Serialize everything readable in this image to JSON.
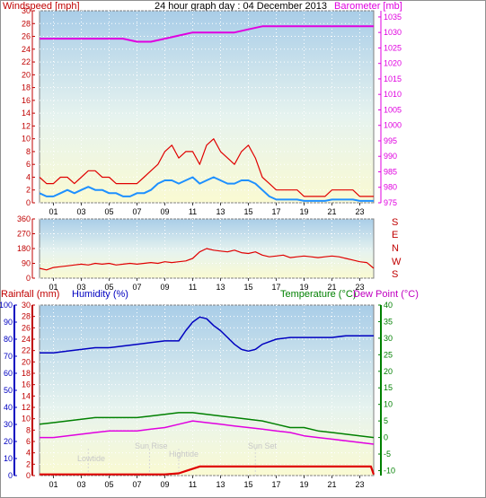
{
  "header": {
    "title": "24 hour graph day : 04 December 2013",
    "left_label": "Windspeed [mph]",
    "right_label": "Barometer [mb]"
  },
  "middle": {
    "compass_labels": [
      "S",
      "E",
      "N",
      "W",
      "S"
    ]
  },
  "bottom": {
    "rainfall_label": "Rainfall (mm)",
    "humidity_label": "Humidity (%)",
    "temperature_label": "Temperature (°C)",
    "dewpoint_label": "Dew Point (°C)",
    "annotations": {
      "lowtide": "Lowtide",
      "sunrise": "Sun Rise",
      "hightide": "Hightide",
      "sunset": "Sun Set"
    }
  },
  "colors": {
    "windspeed": "#e00000",
    "gust": "#e00000",
    "avg_wind": "#1e90ff",
    "barometer": "#e000e0",
    "direction": "#e00000",
    "humidity": "#0000c0",
    "temperature": "#008000",
    "dewpoint": "#e000e0",
    "rainfall": "#e00000"
  },
  "chart_data": [
    {
      "type": "line",
      "name": "wind-and-barometer",
      "x_ticks": [
        "01",
        "03",
        "05",
        "07",
        "09",
        "11",
        "13",
        "15",
        "17",
        "19",
        "21",
        "23"
      ],
      "xlim": [
        0,
        24
      ],
      "y_left": {
        "ticks": [
          0,
          2,
          4,
          6,
          8,
          10,
          12,
          14,
          16,
          18,
          20,
          22,
          24,
          26,
          28,
          30
        ],
        "ylim": [
          0,
          30
        ]
      },
      "y_right": {
        "ticks": [
          975,
          980,
          985,
          990,
          995,
          1000,
          1005,
          1010,
          1015,
          1020,
          1025,
          1030,
          1035
        ],
        "ylim": [
          975,
          1037
        ]
      },
      "series": [
        {
          "key": "gust",
          "x": [
            0,
            0.5,
            1,
            1.5,
            2,
            2.5,
            3,
            3.5,
            4,
            4.5,
            5,
            5.5,
            6,
            6.5,
            7,
            7.5,
            8,
            8.5,
            9,
            9.5,
            10,
            10.5,
            11,
            11.5,
            12,
            12.5,
            13,
            13.5,
            14,
            14.5,
            15,
            15.5,
            16,
            16.5,
            17,
            17.5,
            18,
            18.5,
            19,
            19.5,
            20,
            20.5,
            21,
            21.5,
            22,
            22.5,
            23,
            23.5,
            24
          ],
          "y": [
            4,
            3,
            3,
            4,
            4,
            3,
            4,
            5,
            5,
            4,
            4,
            3,
            3,
            3,
            3,
            4,
            5,
            6,
            8,
            9,
            7,
            8,
            8,
            6,
            9,
            10,
            8,
            7,
            6,
            8,
            9,
            7,
            4,
            3,
            2,
            2,
            2,
            2,
            1,
            1,
            1,
            1,
            2,
            2,
            2,
            2,
            1,
            1,
            1
          ]
        },
        {
          "key": "avg_wind",
          "x": [
            0,
            0.5,
            1,
            1.5,
            2,
            2.5,
            3,
            3.5,
            4,
            4.5,
            5,
            5.5,
            6,
            6.5,
            7,
            7.5,
            8,
            8.5,
            9,
            9.5,
            10,
            10.5,
            11,
            11.5,
            12,
            12.5,
            13,
            13.5,
            14,
            14.5,
            15,
            15.5,
            16,
            16.5,
            17,
            17.5,
            18,
            18.5,
            19,
            19.5,
            20,
            20.5,
            21,
            21.5,
            22,
            22.5,
            23,
            23.5,
            24
          ],
          "y": [
            1.5,
            1,
            1,
            1.5,
            2,
            1.5,
            2,
            2.5,
            2,
            2,
            1.5,
            1.5,
            1,
            1,
            1.5,
            1.5,
            2,
            3,
            3.5,
            3.5,
            3,
            3.5,
            4,
            3,
            3.5,
            4,
            3.5,
            3,
            3,
            3.5,
            3.5,
            3,
            2,
            1,
            0.5,
            0.5,
            0.5,
            0.5,
            0.3,
            0.3,
            0.3,
            0.3,
            0.5,
            0.5,
            0.5,
            0.5,
            0.3,
            0.3,
            0.3
          ]
        },
        {
          "key": "barometer",
          "x": [
            0,
            1,
            2,
            3,
            4,
            5,
            6,
            7,
            8,
            9,
            10,
            11,
            12,
            13,
            14,
            15,
            16,
            17,
            18,
            19,
            20,
            21,
            22,
            23,
            24
          ],
          "y": [
            1028,
            1028,
            1028,
            1028,
            1028,
            1028,
            1028,
            1027,
            1027,
            1028,
            1029,
            1030,
            1030,
            1030,
            1030,
            1031,
            1032,
            1032,
            1032,
            1032,
            1032,
            1032,
            1032,
            1032,
            1032
          ]
        }
      ]
    },
    {
      "type": "line",
      "name": "wind-direction",
      "x_ticks": [
        "01",
        "03",
        "05",
        "07",
        "09",
        "11",
        "13",
        "15",
        "17",
        "19",
        "21",
        "23"
      ],
      "xlim": [
        0,
        24
      ],
      "y_ticks": [
        0,
        90,
        180,
        270,
        360
      ],
      "ylim": [
        0,
        360
      ],
      "series": [
        {
          "key": "direction",
          "x": [
            0,
            0.5,
            1,
            1.5,
            2,
            2.5,
            3,
            3.5,
            4,
            4.5,
            5,
            5.5,
            6,
            6.5,
            7,
            7.5,
            8,
            8.5,
            9,
            9.5,
            10,
            10.5,
            11,
            11.5,
            12,
            12.5,
            13,
            13.5,
            14,
            14.5,
            15,
            15.5,
            16,
            16.5,
            17,
            17.5,
            18,
            18.5,
            19,
            19.5,
            20,
            20.5,
            21,
            21.5,
            22,
            22.5,
            23,
            23.5,
            24
          ],
          "y": [
            60,
            50,
            65,
            70,
            75,
            80,
            85,
            80,
            90,
            85,
            90,
            80,
            85,
            90,
            85,
            90,
            95,
            90,
            100,
            95,
            100,
            105,
            120,
            160,
            180,
            170,
            165,
            160,
            170,
            155,
            150,
            160,
            140,
            130,
            135,
            140,
            125,
            130,
            135,
            130,
            125,
            130,
            135,
            130,
            120,
            110,
            100,
            95,
            60
          ]
        }
      ]
    },
    {
      "type": "line",
      "name": "rain-humidity-temperature",
      "x_ticks": [
        "01",
        "03",
        "05",
        "07",
        "09",
        "11",
        "13",
        "15",
        "17",
        "19",
        "21",
        "23"
      ],
      "xlim": [
        0,
        24
      ],
      "y_humidity": {
        "ticks": [
          0,
          10,
          20,
          30,
          40,
          50,
          60,
          70,
          80,
          90,
          100
        ],
        "ylim": [
          0,
          100
        ]
      },
      "y_rain": {
        "ticks": [
          0,
          2,
          4,
          6,
          8,
          10,
          12,
          14,
          16,
          18,
          20,
          22,
          24,
          26,
          28,
          30
        ],
        "ylim": [
          0,
          30
        ]
      },
      "y_temp": {
        "ticks": [
          -10,
          -5,
          0,
          5,
          10,
          15,
          20,
          25,
          30,
          35,
          40
        ],
        "ylim": [
          -11.5,
          40
        ]
      },
      "series": [
        {
          "key": "humidity",
          "x": [
            0,
            1,
            2,
            3,
            4,
            5,
            6,
            7,
            8,
            9,
            10,
            10.5,
            11,
            11.5,
            12,
            12.5,
            13,
            13.5,
            14,
            14.5,
            15,
            15.5,
            16,
            17,
            18,
            19,
            20,
            21,
            22,
            23,
            24
          ],
          "y": [
            72,
            72,
            73,
            74,
            75,
            75,
            76,
            77,
            78,
            79,
            79,
            85,
            90,
            93,
            92,
            88,
            85,
            81,
            77,
            74,
            73,
            74,
            77,
            80,
            81,
            81,
            81,
            81,
            82,
            82,
            82
          ]
        },
        {
          "key": "temperature",
          "x": [
            0,
            1,
            2,
            3,
            4,
            5,
            6,
            7,
            8,
            9,
            10,
            11,
            12,
            13,
            14,
            15,
            16,
            17,
            18,
            19,
            20,
            21,
            22,
            23,
            24
          ],
          "y": [
            4,
            4.5,
            5,
            5.5,
            6,
            6,
            6,
            6,
            6.5,
            7,
            7.5,
            7.5,
            7,
            6.5,
            6,
            5.5,
            5,
            4,
            3,
            3,
            2,
            1.5,
            1,
            0.5,
            0
          ]
        },
        {
          "key": "dewpoint",
          "x": [
            0,
            1,
            2,
            3,
            4,
            5,
            6,
            7,
            8,
            9,
            10,
            11,
            12,
            13,
            14,
            15,
            16,
            17,
            18,
            19,
            20,
            21,
            22,
            23,
            24
          ],
          "y": [
            0,
            0,
            0.5,
            1,
            1.5,
            2,
            2,
            2,
            2.5,
            3,
            4,
            5,
            4.5,
            4,
            3.5,
            3,
            2.5,
            2,
            1.5,
            0.5,
            0,
            -0.5,
            -1,
            -1.5,
            -2
          ]
        },
        {
          "key": "rainfall",
          "x": [
            0,
            9,
            10,
            10.5,
            11,
            11.5,
            12,
            13,
            14,
            15,
            16,
            17,
            18,
            19,
            20,
            21,
            22,
            23,
            23.8,
            24
          ],
          "y": [
            0.2,
            0.2,
            0.4,
            0.8,
            1.2,
            1.6,
            1.6,
            1.6,
            1.6,
            1.6,
            1.6,
            1.6,
            1.6,
            1.6,
            1.6,
            1.6,
            1.6,
            1.6,
            1.6,
            0.2
          ]
        }
      ],
      "annotation_hours": {
        "lowtide": 3.5,
        "sunrise": 7.9,
        "hightide": 10,
        "sunset": 15.5
      }
    }
  ]
}
